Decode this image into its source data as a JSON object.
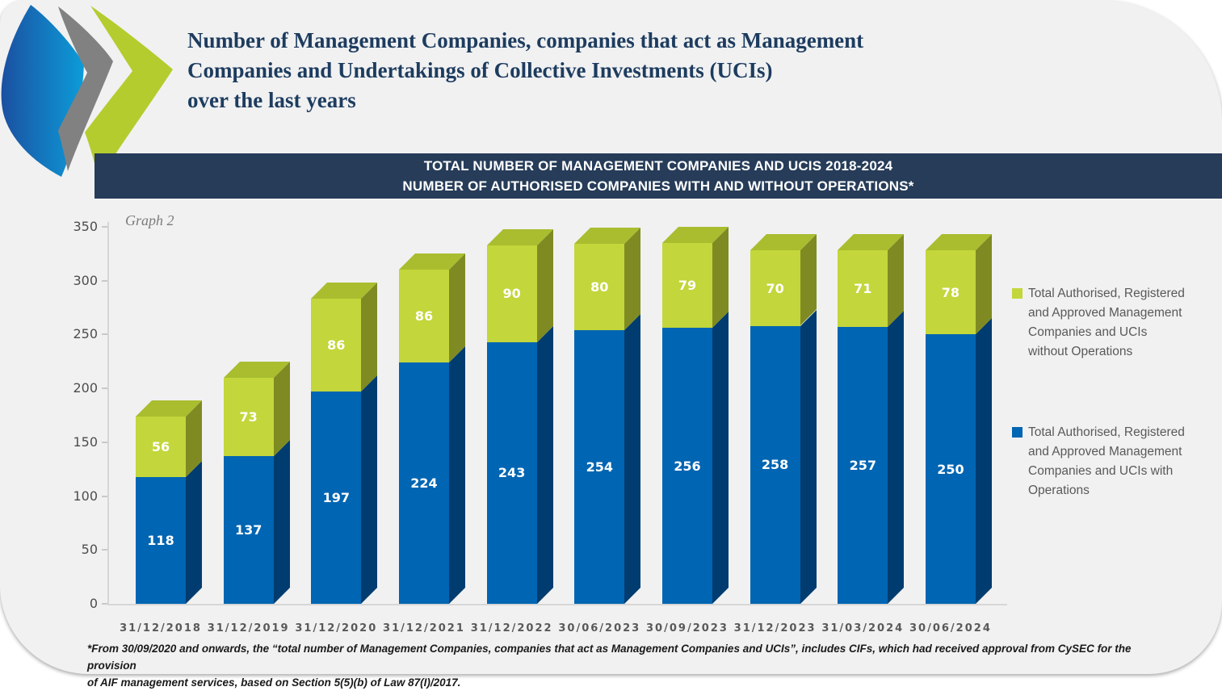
{
  "logo": {
    "name": "company-logo-chevrons",
    "colors": {
      "blue_dark": "#1B50A0",
      "blue_light": "#0C9CD9",
      "gray": "#808080",
      "green": "#B5CC2E"
    }
  },
  "header": {
    "title": "Number of Management Companies, companies that act as Management\nCompanies and Undertakings of Collective Investments (UCIs)\nover the last years"
  },
  "banner": {
    "text": "TOTAL NUMBER OF MANAGEMENT COMPANIES AND UCIS 2018-2024\nNUMBER OF AUTHORISED COMPANIES WITH AND WITHOUT OPERATIONS*",
    "background": "#263C59"
  },
  "graph_label": "Graph 2",
  "chart_data": {
    "type": "bar",
    "stacked": true,
    "title": "TOTAL NUMBER OF MANAGEMENT COMPANIES AND UCIS 2018-2024 — NUMBER OF AUTHORISED COMPANIES WITH AND WITHOUT OPERATIONS*",
    "categories": [
      "31/12/2018",
      "31/12/2019",
      "31/12/2020",
      "31/12/2021",
      "31/12/2022",
      "30/06/2023",
      "30/09/2023",
      "31/12/2023",
      "31/03/2024",
      "30/06/2024"
    ],
    "series": [
      {
        "name": "Total Authorised, Registered and Approved Management Companies and UCIs with Operations",
        "color": "#0065B2",
        "side_color": "#003C70",
        "values": [
          118,
          137,
          197,
          224,
          243,
          254,
          256,
          258,
          257,
          250
        ]
      },
      {
        "name": "Total Authorised, Registered and Approved Management Companies and UCIs without Operations",
        "color": "#C3D63B",
        "side_color": "#7F8B22",
        "top_color": "#A9BD2F",
        "values": [
          56,
          73,
          86,
          86,
          90,
          80,
          79,
          70,
          71,
          78
        ]
      }
    ],
    "ylim": [
      0,
      350
    ],
    "yticks": [
      0,
      50,
      100,
      150,
      200,
      250,
      300,
      350
    ],
    "grid": false,
    "legend_position": "right"
  },
  "legend": {
    "items": [
      {
        "label": "Total Authorised, Registered\nand Approved Management\nCompanies and UCIs\nwithout Operations",
        "color": "#C3D63B"
      },
      {
        "label": "Total Authorised, Registered\nand Approved Management\nCompanies and UCIs with\nOperations",
        "color": "#0065B2"
      }
    ]
  },
  "footnote": "*From 30/09/2020 and onwards, the “total number of Management Companies, companies that act as Management Companies and UCIs”, includes CIFs, which had received approval from CySEC for the provision\nof AIF management services, based on Section 5(5)(b) of Law 87(I)/2017."
}
